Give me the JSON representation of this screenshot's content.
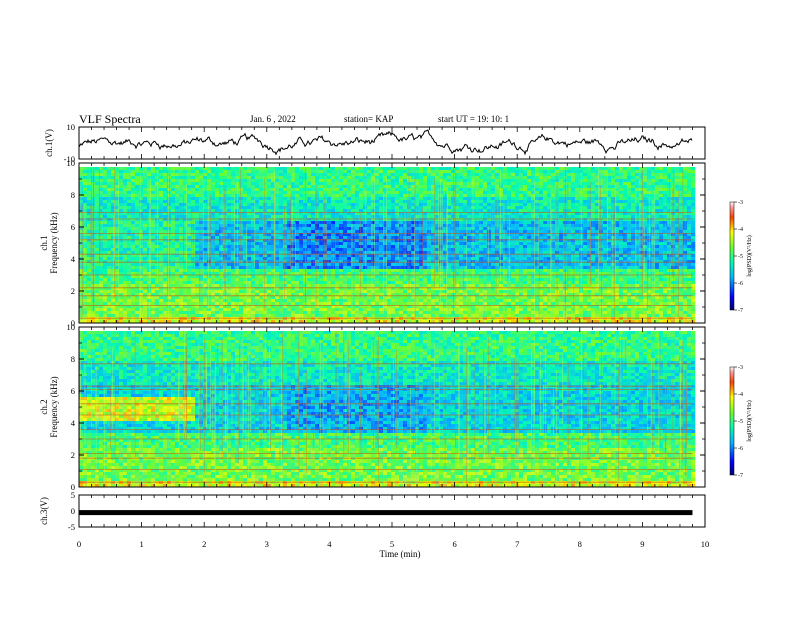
{
  "header": {
    "title": "VLF Spectra",
    "date": "Jan. 6 , 2022",
    "station": "station= KAP",
    "start": "start UT =   19: 10: 1"
  },
  "chart_data": [
    {
      "type": "line",
      "name": "ch1-waveform-panel",
      "ylabel": "ch.1(V)",
      "ylim": [
        -10,
        10
      ],
      "yticks": [
        "10",
        "-10"
      ],
      "xlim": [
        0,
        10
      ],
      "trace_end_min": 9.8
    },
    {
      "type": "heatmap",
      "name": "ch1-spectrogram",
      "ylabel": "ch.1 Frequency (kHz)",
      "ylabel_line1": "ch.1",
      "ylabel_line2": "Frequency (kHz)",
      "ylim": [
        0,
        10
      ],
      "yticks": [
        0,
        2,
        4,
        6,
        8,
        10
      ],
      "xlim": [
        0,
        10
      ],
      "data_end_min": 9.8,
      "colorbar": {
        "label": "log(PSD)(V²/Hz)",
        "range": [
          -7,
          -3
        ],
        "ticks": [
          "-3",
          "-4",
          "-5",
          "-6",
          "-7"
        ]
      }
    },
    {
      "type": "heatmap",
      "name": "ch2-spectrogram",
      "ylabel": "ch.2 Frequency (kHz)",
      "ylabel_line1": "ch.2",
      "ylabel_line2": "Frequency (kHz)",
      "ylim": [
        0,
        10
      ],
      "yticks": [
        0,
        2,
        4,
        6,
        8,
        10
      ],
      "xlim": [
        0,
        10
      ],
      "data_end_min": 9.8,
      "colorbar": {
        "label": "log(PSD)(V²/Hz)",
        "range": [
          -7,
          -3
        ],
        "ticks": [
          "-3",
          "-4",
          "-5",
          "-6",
          "-7"
        ]
      }
    },
    {
      "type": "line",
      "name": "ch3-panel",
      "ylabel": "ch.3(V)",
      "ylim": [
        -5,
        5
      ],
      "yticks": [
        "5",
        "0",
        "-5"
      ],
      "xlim": [
        0,
        10
      ],
      "xticks": [
        0,
        1,
        2,
        3,
        4,
        5,
        6,
        7,
        8,
        9,
        10
      ],
      "xlabel": "Time (min)",
      "trace_value": -0.5,
      "trace_end_min": 9.8
    }
  ]
}
